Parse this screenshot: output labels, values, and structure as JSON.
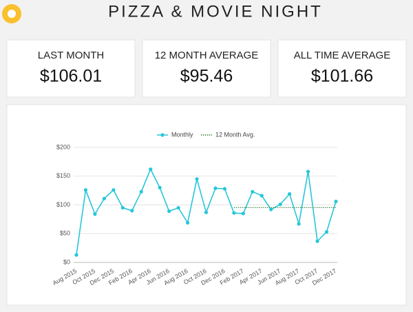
{
  "header": {
    "title": "PIZZA & MOVIE NIGHT"
  },
  "cards": [
    {
      "label": "LAST MONTH",
      "value": "$106.01"
    },
    {
      "label": "12 MONTH AVERAGE",
      "value": "$95.46"
    },
    {
      "label": "ALL TIME AVERAGE",
      "value": "$101.66"
    }
  ],
  "chart_data": {
    "type": "line",
    "categories": [
      "Aug 2015",
      null,
      "Oct 2015",
      null,
      "Dec 2015",
      null,
      "Feb 2016",
      null,
      "Apr 2016",
      null,
      "Jun 2016",
      null,
      "Aug 2016",
      null,
      "Oct 2016",
      null,
      "Dec 2016",
      null,
      "Feb 2017",
      null,
      "Apr 2017",
      null,
      "Jun 2017",
      null,
      "Aug 2017",
      null,
      "Oct 2017",
      null,
      "Dec 2017"
    ],
    "series": [
      {
        "name": "Monthly",
        "color": "#26c6da",
        "style": "solid",
        "values": [
          13,
          126,
          84,
          111,
          126,
          95,
          90,
          123,
          162,
          130,
          89,
          95,
          69,
          145,
          87,
          129,
          128,
          86,
          85,
          123,
          116,
          92,
          101,
          119,
          67,
          158,
          37,
          53,
          106
        ]
      },
      {
        "name": "12 Month Avg.",
        "color": "#2e7d32",
        "style": "dotted",
        "values": [
          null,
          null,
          null,
          null,
          null,
          null,
          null,
          null,
          null,
          null,
          null,
          null,
          null,
          null,
          null,
          null,
          null,
          95.46,
          95.46,
          95.46,
          95.46,
          95.46,
          95.46,
          95.46,
          95.46,
          95.46,
          95.46,
          95.46,
          95.46
        ]
      }
    ],
    "ylim": [
      0,
      200
    ],
    "yticks": [
      {
        "value": 0,
        "label": "$0"
      },
      {
        "value": 50,
        "label": "$50"
      },
      {
        "value": 100,
        "label": "$100"
      },
      {
        "value": 150,
        "label": "$150"
      },
      {
        "value": 200,
        "label": "$200"
      }
    ],
    "grid": true,
    "legend": "top"
  }
}
